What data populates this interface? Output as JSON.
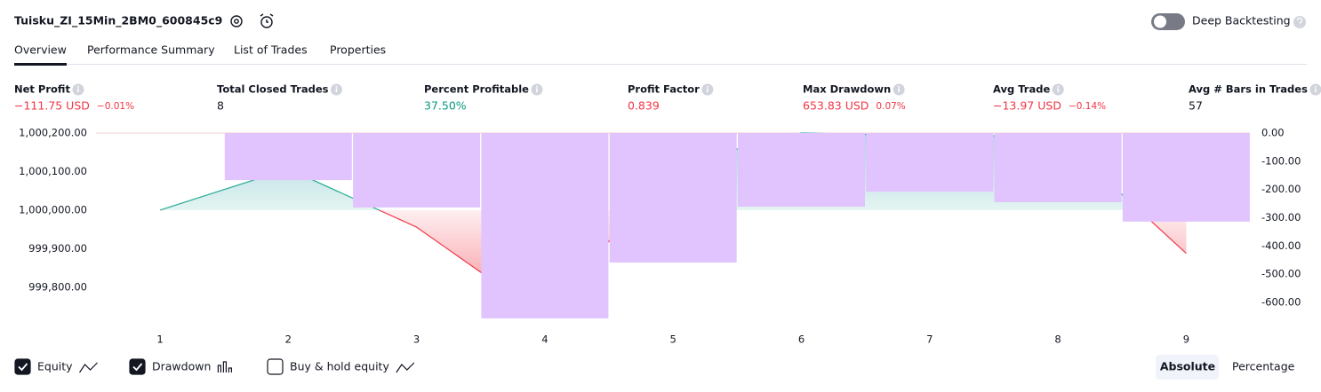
{
  "header": {
    "title": "Tuisku_ZI_15Min_2BM0_600845c9",
    "deep_backtesting": "Deep Backtesting"
  },
  "tabs": [
    "Overview",
    "Performance Summary",
    "List of Trades",
    "Properties"
  ],
  "metrics": [
    {
      "label": "Net Profit",
      "value": "−111.75 USD",
      "percent": "−0.01%"
    },
    {
      "label": "Total Closed Trades",
      "value": "8"
    },
    {
      "label": "Percent Profitable",
      "value": "37.50%"
    },
    {
      "label": "Profit Factor",
      "value": "0.839"
    },
    {
      "label": "Max Drawdown",
      "value": "653.83 USD",
      "percent": "0.07%"
    },
    {
      "label": "Avg Trade",
      "value": "−13.97 USD",
      "percent": "−0.14%"
    },
    {
      "label": "Avg # Bars in Trades",
      "value": "57"
    }
  ],
  "chart_data": {
    "type": "combo",
    "categories": [
      "1",
      "2",
      "3",
      "4",
      "5",
      "6",
      "7",
      "8",
      "9"
    ],
    "series": [
      {
        "name": "Equity",
        "type": "line",
        "axis": "y",
        "color": "#22ab94",
        "negative_color": "#f23645",
        "checked": true,
        "values": [
          1000000,
          1000107,
          999956,
          999722,
          1000117,
          1000200,
          1000193,
          1000193,
          999888
        ]
      },
      {
        "name": "Drawdown",
        "type": "bar",
        "axis": "y2",
        "color": "#e1c4fd",
        "checked": true,
        "values": [
          0,
          -167,
          -264,
          -657,
          -459,
          -261,
          -208,
          -245,
          -314
        ]
      },
      {
        "name": "Buy & hold equity",
        "type": "line",
        "axis": "y",
        "color": "#131722",
        "checked": false,
        "values": [
          null,
          null,
          null,
          null,
          null,
          null,
          null,
          null,
          null
        ]
      }
    ],
    "ylim": [
      999717,
      1000200
    ],
    "yticks": [
      {
        "value": 1000200,
        "label": "1,000,200.00"
      },
      {
        "value": 1000100,
        "label": "1,000,100.00"
      },
      {
        "value": 1000000,
        "label": "1,000,000.00"
      },
      {
        "value": 999900,
        "label": "999,900.00"
      },
      {
        "value": 999800,
        "label": "999,800.00"
      }
    ],
    "y2lim": [
      -660,
      0
    ],
    "y2ticks": [
      {
        "value": 0,
        "label": "0.00"
      },
      {
        "value": -100,
        "label": "-100.00"
      },
      {
        "value": -200,
        "label": "-200.00"
      },
      {
        "value": -300,
        "label": "-300.00"
      },
      {
        "value": -400,
        "label": "-400.00"
      },
      {
        "value": -500,
        "label": "-500.00"
      },
      {
        "value": -600,
        "label": "-600.00"
      }
    ]
  },
  "buttons": [
    "Absolute",
    "Percentage"
  ]
}
